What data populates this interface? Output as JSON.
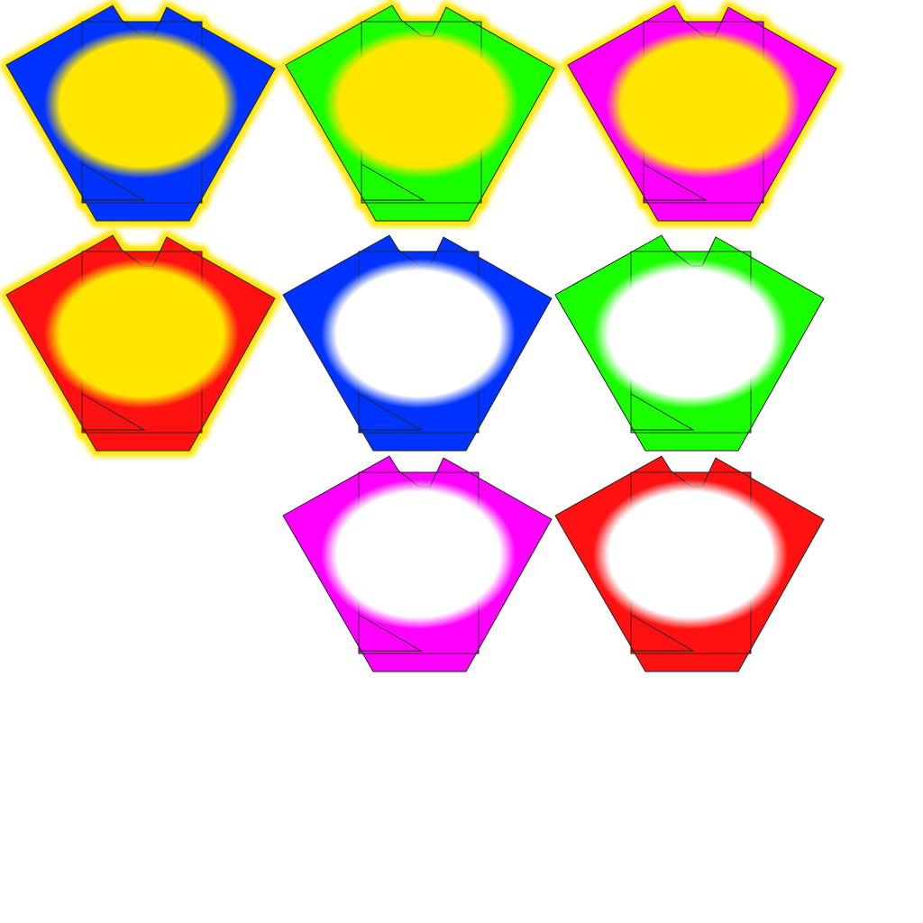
{
  "sprite_sheet": {
    "name": "piece-sprite-sheet",
    "glow_color": "#ffe600",
    "sprites": [
      {
        "name": "blue-piece-selected",
        "color": "#0033ff",
        "center_fill": "#ffe600",
        "selected": true
      },
      {
        "name": "green-piece-selected",
        "color": "#1aff00",
        "center_fill": "#ffe600",
        "selected": true
      },
      {
        "name": "magenta-piece-selected",
        "color": "#ff00ff",
        "center_fill": "#ffe600",
        "selected": true
      },
      {
        "name": "red-piece-selected",
        "color": "#ff1111",
        "center_fill": "#ffe600",
        "selected": true
      },
      {
        "name": "blue-piece",
        "color": "#0033ff",
        "center_fill": "#ffffff",
        "selected": false
      },
      {
        "name": "green-piece",
        "color": "#1aff00",
        "center_fill": "#ffffff",
        "selected": false
      },
      {
        "name": "magenta-piece",
        "color": "#ff00ff",
        "center_fill": "#ffffff",
        "selected": false
      },
      {
        "name": "red-piece",
        "color": "#ff1111",
        "center_fill": "#ffffff",
        "selected": false
      }
    ]
  }
}
